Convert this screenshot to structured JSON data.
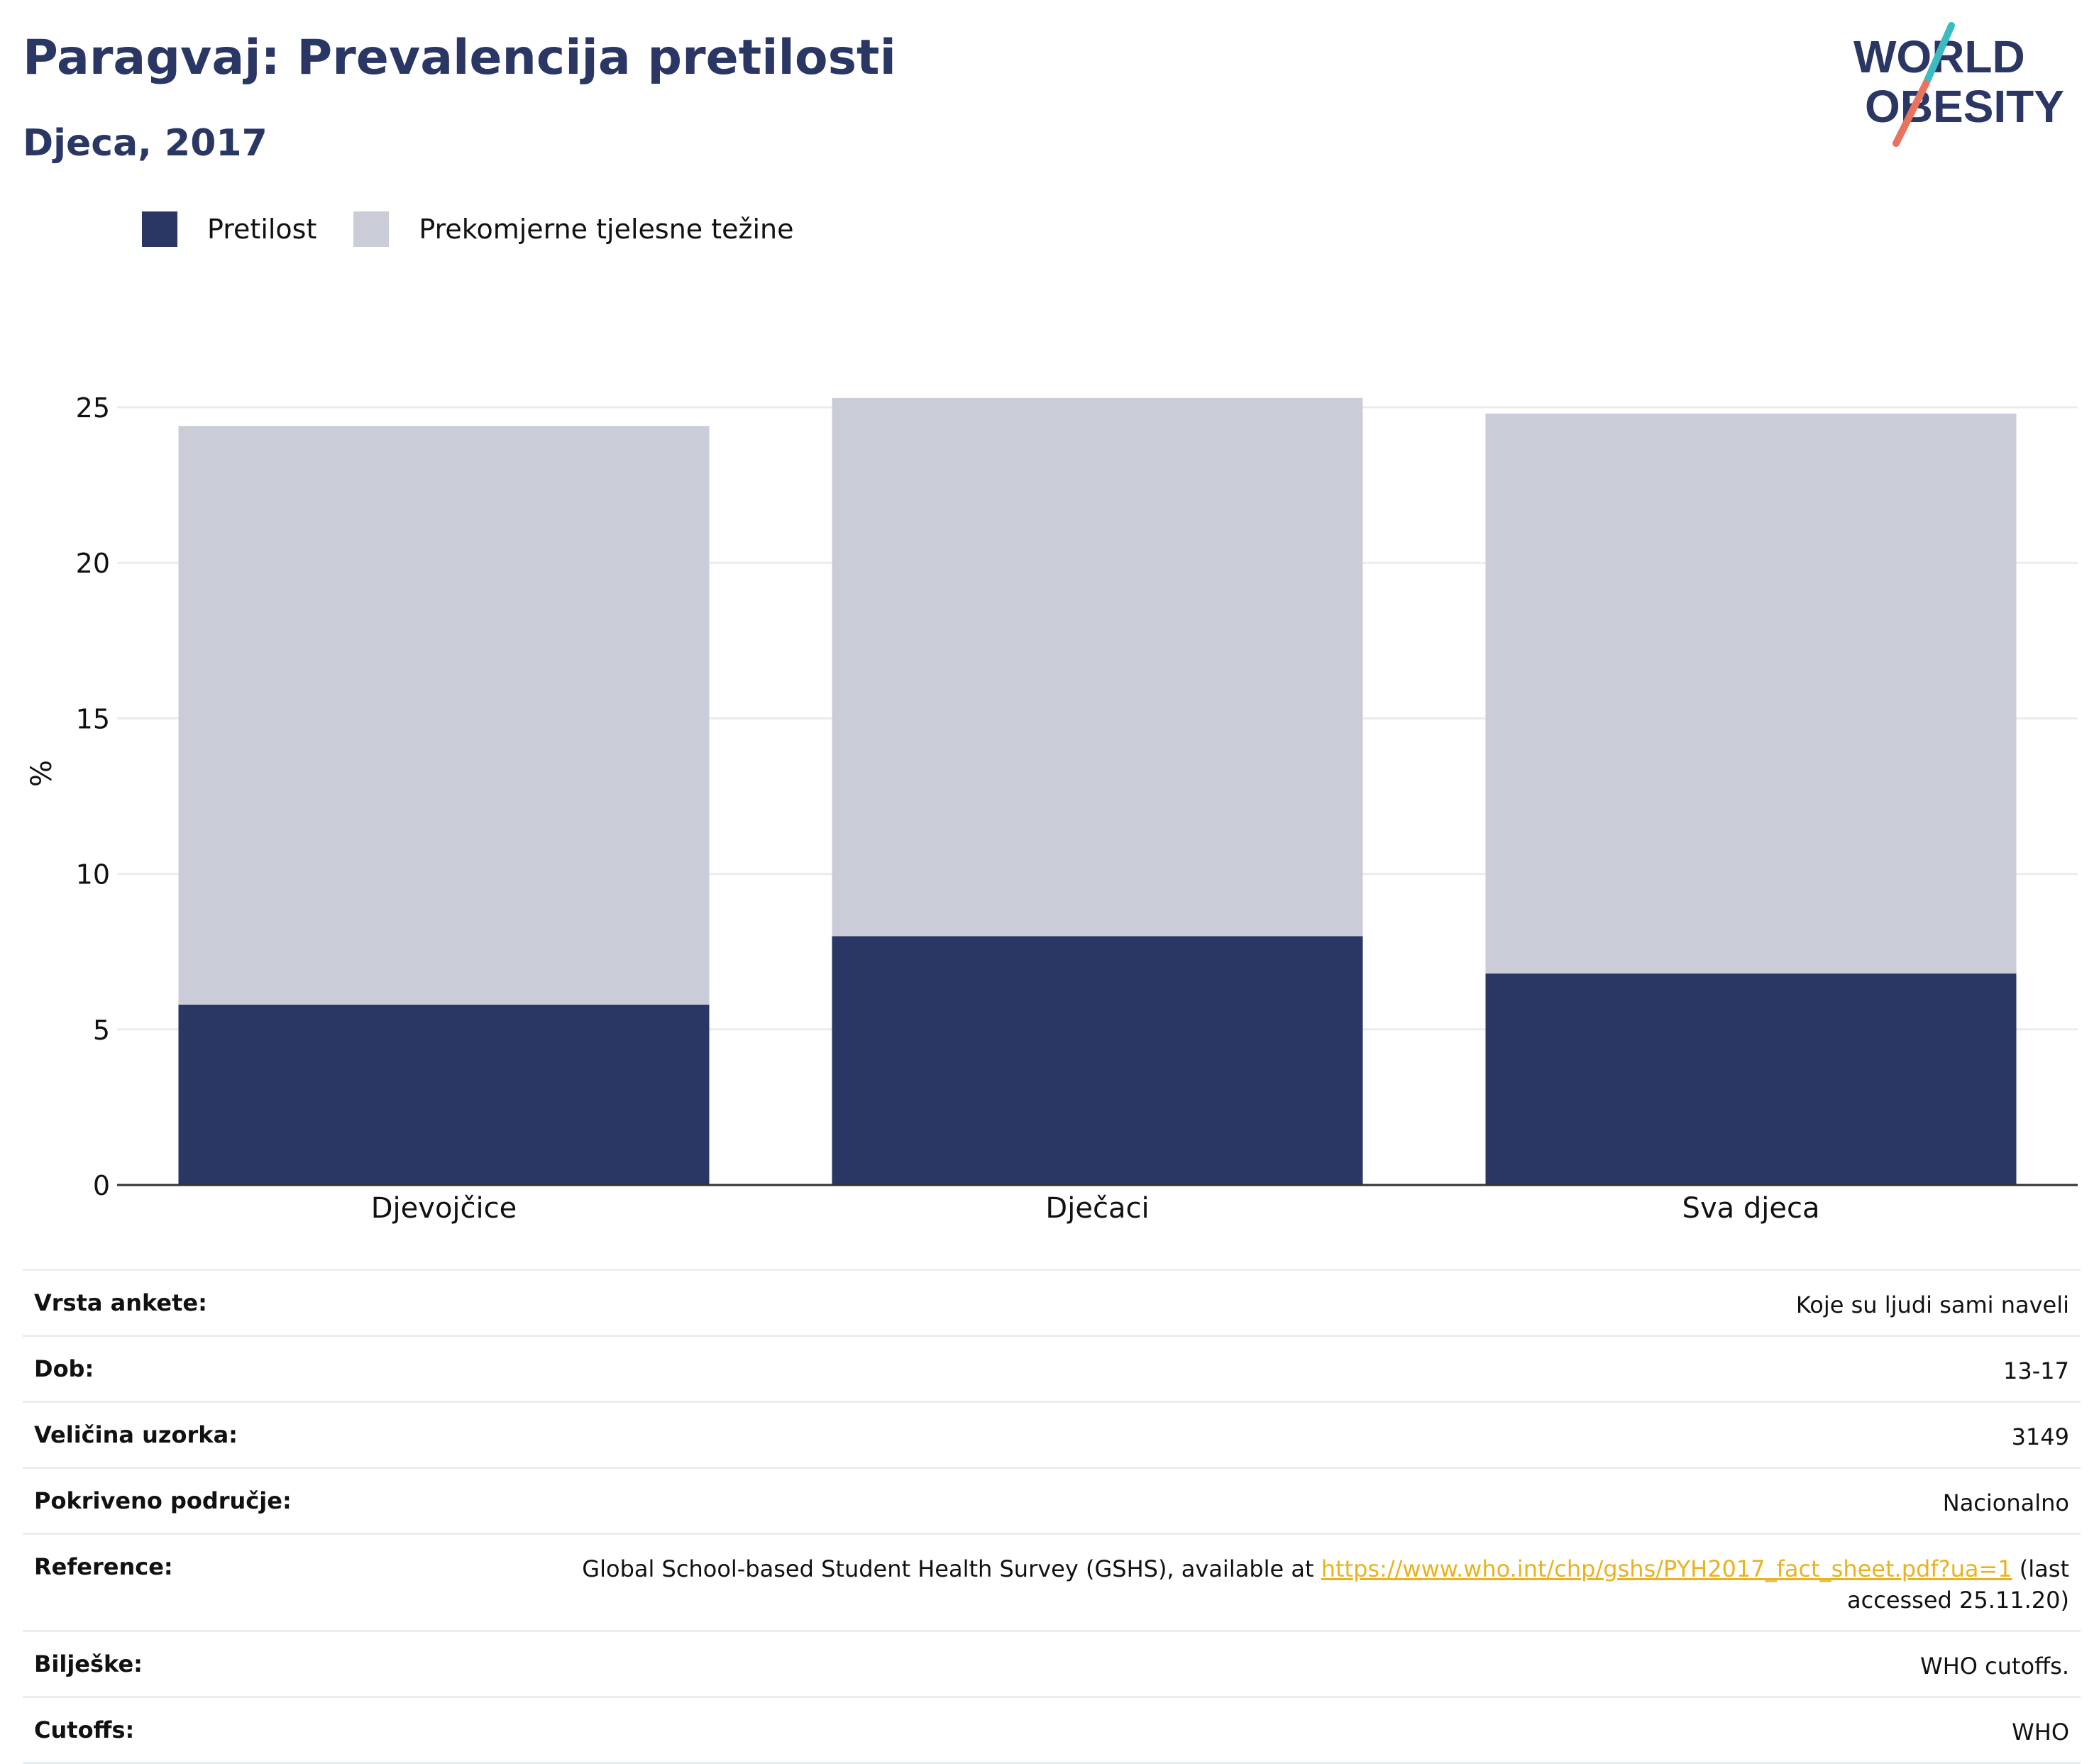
{
  "header": {
    "title": "Paragvaj: Prevalencija pretilosti",
    "subtitle": "Djeca, 2017"
  },
  "logo": {
    "line1": "WORLD",
    "line2": "OBESITY"
  },
  "colors": {
    "obesity": "#2a3663",
    "overweight": "#cacdd8",
    "accent_teal": "#3bbcc0",
    "accent_coral": "#e8735f",
    "link": "#e8b220"
  },
  "chart_data": {
    "type": "bar",
    "stacked": true,
    "categories": [
      "Djevojčice",
      "Dječaci",
      "Sva djeca"
    ],
    "series": [
      {
        "name": "Pretilost",
        "values": [
          5.8,
          8.0,
          6.8
        ]
      },
      {
        "name": "Prekomjerne tjelesne težine",
        "values": [
          18.6,
          17.3,
          18.0
        ]
      }
    ],
    "ylabel": "%",
    "ylim": [
      0,
      26
    ],
    "yticks": [
      0,
      5,
      10,
      15,
      20,
      25
    ],
    "grid": true,
    "legend": "top-left"
  },
  "info": {
    "rows": [
      {
        "label": "Vrsta ankete:",
        "value": "Koje su ljudi sami naveli"
      },
      {
        "label": "Dob:",
        "value": "13-17"
      },
      {
        "label": "Veličina uzorka:",
        "value": "3149"
      },
      {
        "label": "Pokriveno područje:",
        "value": "Nacionalno"
      }
    ],
    "reference": {
      "label": "Reference:",
      "prefix": "Global School-based Student Health Survey (GSHS), available at ",
      "link": "https://www.who.int/chp/gshs/PYH2017_fact_sheet.pdf?ua=1",
      "suffix": " (last accessed 25.11.20)"
    },
    "notes": {
      "label": "Bilješke:",
      "value": "WHO cutoffs."
    },
    "cutoffs": {
      "label": "Cutoffs:",
      "value": "WHO"
    }
  }
}
